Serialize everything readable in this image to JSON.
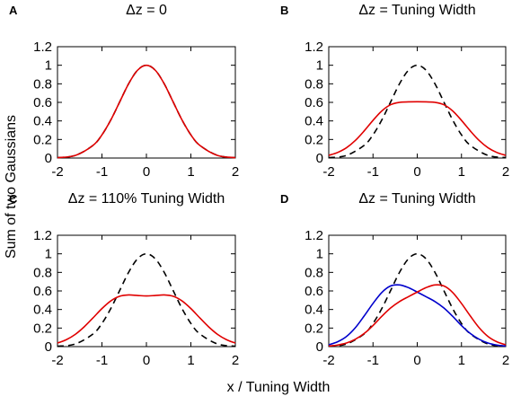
{
  "figure": {
    "ylabel": "Sum of two Gaussians",
    "xlabel": "x / Tuning Width"
  },
  "colors": {
    "reference": "#000000",
    "sum": "#e00000",
    "second": "#0000cc"
  },
  "chart_data": [
    {
      "type": "line",
      "letter": "A",
      "title": "Δz = 0",
      "xlim": [
        -2,
        2
      ],
      "ylim": [
        0,
        1.2
      ],
      "xticks": [
        "-2",
        "-1",
        "0",
        "1",
        "2"
      ],
      "yticks": [
        "0",
        "0.2",
        "0.4",
        "0.6",
        "0.8",
        "1",
        "1.2"
      ],
      "grid": false,
      "series": [
        {
          "style": "dashed",
          "color": "#000000",
          "x": [
            -2,
            -1.6,
            -1.2,
            -1,
            -0.8,
            -0.6,
            -0.4,
            -0.2,
            0,
            0.2,
            0.4,
            0.6,
            0.8,
            1,
            1.2,
            1.6,
            2
          ],
          "values": [
            0.004,
            0.028,
            0.137,
            0.25,
            0.411,
            0.606,
            0.801,
            0.946,
            1,
            0.946,
            0.801,
            0.606,
            0.411,
            0.25,
            0.137,
            0.028,
            0.004
          ]
        },
        {
          "style": "solid",
          "color": "#e00000",
          "x": [
            -2,
            -1.6,
            -1.2,
            -1,
            -0.8,
            -0.6,
            -0.4,
            -0.2,
            0,
            0.2,
            0.4,
            0.6,
            0.8,
            1,
            1.2,
            1.6,
            2
          ],
          "values": [
            0.004,
            0.028,
            0.137,
            0.25,
            0.411,
            0.606,
            0.801,
            0.946,
            1,
            0.946,
            0.801,
            0.606,
            0.411,
            0.25,
            0.137,
            0.028,
            0.004
          ]
        }
      ]
    },
    {
      "type": "line",
      "letter": "B",
      "title": "Δz = Tuning Width",
      "xlim": [
        -2,
        2
      ],
      "ylim": [
        0,
        1.2
      ],
      "xticks": [
        "-2",
        "-1",
        "0",
        "1",
        "2"
      ],
      "yticks": [
        "0",
        "0.2",
        "0.4",
        "0.6",
        "0.8",
        "1",
        "1.2"
      ],
      "grid": false,
      "series": [
        {
          "style": "dashed",
          "color": "#000000",
          "x": [
            -2,
            -1.6,
            -1.2,
            -1,
            -0.8,
            -0.6,
            -0.4,
            -0.2,
            0,
            0.2,
            0.4,
            0.6,
            0.8,
            1,
            1.2,
            1.6,
            2
          ],
          "values": [
            0.004,
            0.028,
            0.137,
            0.25,
            0.411,
            0.606,
            0.801,
            0.946,
            1,
            0.946,
            0.801,
            0.606,
            0.411,
            0.25,
            0.137,
            0.028,
            0.004
          ]
        },
        {
          "style": "solid",
          "color": "#e00000",
          "x": [
            -2,
            -1.8,
            -1.6,
            -1.4,
            -1.2,
            -1,
            -0.8,
            -0.6,
            -0.4,
            -0.2,
            0,
            0.2,
            0.4,
            0.6,
            0.8,
            1,
            1.2,
            1.4,
            1.6,
            1.8,
            2
          ],
          "values": [
            0.029,
            0.06,
            0.111,
            0.189,
            0.292,
            0.406,
            0.508,
            0.575,
            0.6,
            0.605,
            0.607,
            0.605,
            0.6,
            0.575,
            0.508,
            0.406,
            0.292,
            0.189,
            0.111,
            0.06,
            0.029
          ]
        }
      ]
    },
    {
      "type": "line",
      "letter": "C",
      "title": "Δz = 110% Tuning Width",
      "xlim": [
        -2,
        2
      ],
      "ylim": [
        0,
        1.2
      ],
      "xticks": [
        "-2",
        "-1",
        "0",
        "1",
        "2"
      ],
      "yticks": [
        "0",
        "0.2",
        "0.4",
        "0.6",
        "0.8",
        "1",
        "1.2"
      ],
      "grid": false,
      "series": [
        {
          "style": "dashed",
          "color": "#000000",
          "x": [
            -2,
            -1.6,
            -1.2,
            -1,
            -0.8,
            -0.6,
            -0.4,
            -0.2,
            0,
            0.2,
            0.4,
            0.6,
            0.8,
            1,
            1.2,
            1.6,
            2
          ],
          "values": [
            0.004,
            0.028,
            0.137,
            0.25,
            0.411,
            0.606,
            0.801,
            0.946,
            1,
            0.946,
            0.801,
            0.606,
            0.411,
            0.25,
            0.137,
            0.028,
            0.004
          ]
        },
        {
          "style": "solid",
          "color": "#e00000",
          "x": [
            -2,
            -1.8,
            -1.6,
            -1.4,
            -1.2,
            -1,
            -0.8,
            -0.6,
            -0.4,
            -0.2,
            0,
            0.2,
            0.4,
            0.6,
            0.8,
            1,
            1.2,
            1.4,
            1.6,
            1.8,
            2
          ],
          "values": [
            0.038,
            0.075,
            0.132,
            0.213,
            0.31,
            0.41,
            0.493,
            0.543,
            0.557,
            0.551,
            0.546,
            0.551,
            0.557,
            0.543,
            0.493,
            0.41,
            0.31,
            0.213,
            0.132,
            0.075,
            0.038
          ]
        }
      ]
    },
    {
      "type": "line",
      "letter": "D",
      "title": "Δz = Tuning Width",
      "xlim": [
        -2,
        2
      ],
      "ylim": [
        0,
        1.2
      ],
      "xticks": [
        "-2",
        "-1",
        "0",
        "1",
        "2"
      ],
      "yticks": [
        "0",
        "0.2",
        "0.4",
        "0.6",
        "0.8",
        "1",
        "1.2"
      ],
      "grid": false,
      "series": [
        {
          "style": "dashed",
          "color": "#000000",
          "x": [
            -2,
            -1.6,
            -1.2,
            -1,
            -0.8,
            -0.6,
            -0.4,
            -0.2,
            0,
            0.2,
            0.4,
            0.6,
            0.8,
            1,
            1.2,
            1.6,
            2
          ],
          "values": [
            0.004,
            0.028,
            0.137,
            0.25,
            0.411,
            0.606,
            0.801,
            0.946,
            1,
            0.946,
            0.801,
            0.606,
            0.411,
            0.25,
            0.137,
            0.028,
            0.004
          ]
        },
        {
          "style": "solid",
          "color": "#0000cc",
          "x": [
            -2,
            -1.8,
            -1.6,
            -1.4,
            -1.2,
            -1,
            -0.8,
            -0.6,
            -0.4,
            -0.2,
            0,
            0.2,
            0.4,
            0.6,
            0.8,
            1,
            1.2,
            1.4,
            1.6,
            1.8,
            2
          ],
          "values": [
            0.02,
            0.052,
            0.109,
            0.203,
            0.33,
            0.465,
            0.584,
            0.654,
            0.665,
            0.636,
            0.588,
            0.538,
            0.486,
            0.417,
            0.327,
            0.227,
            0.141,
            0.079,
            0.039,
            0.017,
            0.006
          ]
        },
        {
          "style": "solid",
          "color": "#e00000",
          "x": [
            -2,
            -1.8,
            -1.6,
            -1.4,
            -1.2,
            -1,
            -0.8,
            -0.6,
            -0.4,
            -0.2,
            0,
            0.2,
            0.4,
            0.6,
            0.8,
            1,
            1.2,
            1.4,
            1.6,
            1.8,
            2
          ],
          "values": [
            0.006,
            0.017,
            0.039,
            0.079,
            0.141,
            0.227,
            0.327,
            0.417,
            0.486,
            0.538,
            0.588,
            0.636,
            0.665,
            0.654,
            0.584,
            0.465,
            0.33,
            0.203,
            0.109,
            0.052,
            0.02
          ]
        }
      ]
    }
  ]
}
